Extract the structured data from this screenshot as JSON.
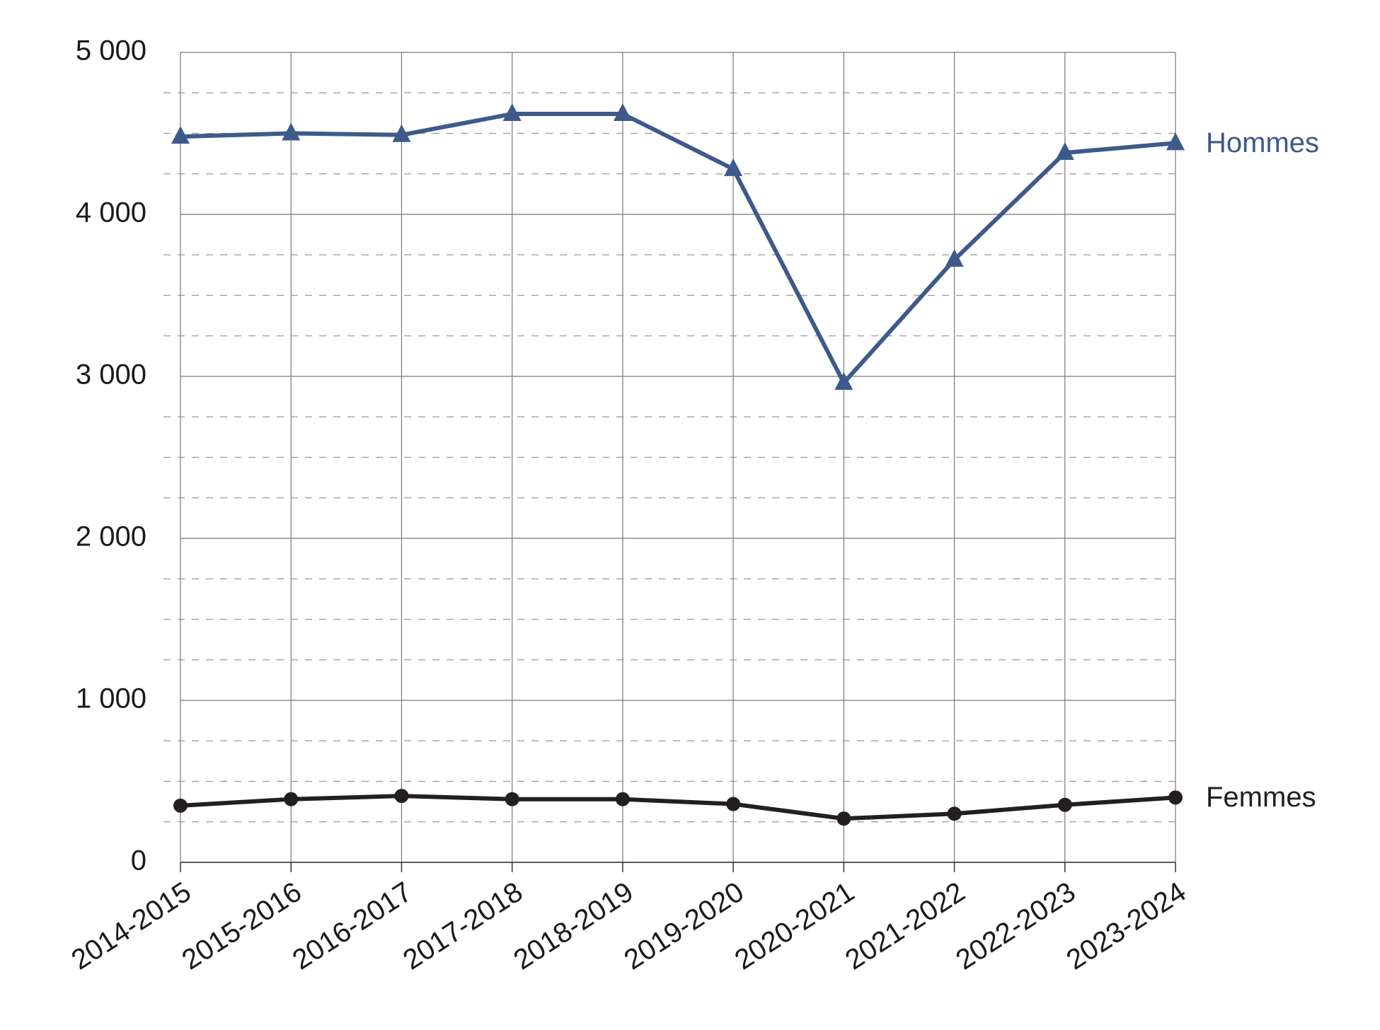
{
  "chart_data": {
    "type": "line",
    "categories": [
      "2014-2015",
      "2015-2016",
      "2016-2017",
      "2017-2018",
      "2018-2019",
      "2019-2020",
      "2020-2021",
      "2021-2022",
      "2022-2023",
      "2023-2024"
    ],
    "series": [
      {
        "name": "Hommes",
        "color": "#3d5a8a",
        "marker": "triangle",
        "values": [
          4480,
          4500,
          4490,
          4620,
          4620,
          4280,
          2960,
          3720,
          4380,
          4440
        ]
      },
      {
        "name": "Femmes",
        "color": "#231f20",
        "marker": "circle",
        "values": [
          350,
          390,
          410,
          390,
          390,
          360,
          270,
          300,
          355,
          400
        ]
      }
    ],
    "ylim": [
      0,
      5000
    ],
    "yticks": [
      0,
      {
        "value": 1000,
        "label": "1 000"
      },
      {
        "value": 2000,
        "label": "2 000"
      },
      {
        "value": 3000,
        "label": "3 000"
      },
      {
        "value": 4000,
        "label": "4 000"
      },
      {
        "value": 5000,
        "label": "5 000"
      }
    ],
    "minor_yticks": [
      250,
      500,
      750,
      1250,
      1500,
      1750,
      2250,
      2500,
      2750,
      3250,
      3500,
      3750,
      4250,
      4500,
      4750
    ],
    "grid": true
  }
}
